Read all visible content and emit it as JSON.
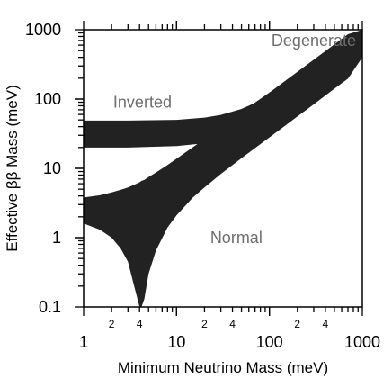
{
  "chart_data": {
    "type": "area",
    "xlabel": "Minimum Neutrino Mass (meV)",
    "ylabel": "Effective ββ Mass (meV)",
    "xscale": "log",
    "yscale": "log",
    "xlim": [
      1,
      1000
    ],
    "ylim": [
      0.1,
      1000
    ],
    "grid": false,
    "x_ticks": [
      {
        "value": 1,
        "label": "1"
      },
      {
        "value": 10,
        "label": "10"
      },
      {
        "value": 100,
        "label": "100"
      },
      {
        "value": 1000,
        "label": "1000"
      }
    ],
    "x_minor_labels": [
      {
        "value": 2,
        "label": "2"
      },
      {
        "value": 4,
        "label": "4"
      },
      {
        "value": 20,
        "label": "2"
      },
      {
        "value": 40,
        "label": "4"
      },
      {
        "value": 200,
        "label": "2"
      },
      {
        "value": 400,
        "label": "4"
      }
    ],
    "y_ticks": [
      {
        "value": 0.1,
        "label": "0.1"
      },
      {
        "value": 1,
        "label": "1"
      },
      {
        "value": 10,
        "label": "10"
      },
      {
        "value": 100,
        "label": "100"
      },
      {
        "value": 1000,
        "label": "1000"
      }
    ],
    "series": [
      {
        "name": "Inverted",
        "color": "#222222",
        "x": [
          1,
          3,
          10,
          20,
          30,
          50,
          70,
          100,
          200,
          300,
          500,
          700,
          1000
        ],
        "upper": [
          49,
          49,
          50,
          54,
          59,
          72,
          88,
          113,
          208,
          305,
          502,
          700,
          1000
        ],
        "lower": [
          20,
          20,
          21,
          23,
          25,
          30,
          37,
          46,
          84,
          123,
          202,
          282,
          400
        ]
      },
      {
        "name": "Normal",
        "color": "#222222",
        "x": [
          1,
          1.5,
          2,
          2.5,
          3,
          3.5,
          4,
          4.2,
          4.5,
          5,
          6,
          8,
          10,
          15,
          20,
          30,
          50,
          70,
          100,
          200,
          300,
          500,
          700,
          1000
        ],
        "upper": [
          3.8,
          4.1,
          4.5,
          4.9,
          5.3,
          5.8,
          6.3,
          6.6,
          6.8,
          7.5,
          8.7,
          11.2,
          13.8,
          20.2,
          26.5,
          39.1,
          64.0,
          89.0,
          124,
          247,
          370,
          615,
          860,
          1000
        ],
        "lower": [
          1.6,
          1.3,
          1.0,
          0.7,
          0.45,
          0.2,
          0.1,
          0.1,
          0.13,
          0.3,
          0.65,
          1.4,
          2.1,
          3.8,
          5.3,
          8.3,
          14.0,
          19.6,
          28,
          56,
          84,
          141,
          197,
          400
        ]
      }
    ],
    "annotations": [
      {
        "text": "Degenerate",
        "x": 300,
        "y": 700
      },
      {
        "text": "Inverted",
        "x": 4.3,
        "y": 90
      },
      {
        "text": "Normal",
        "x": 44,
        "y": 1.0
      }
    ]
  }
}
